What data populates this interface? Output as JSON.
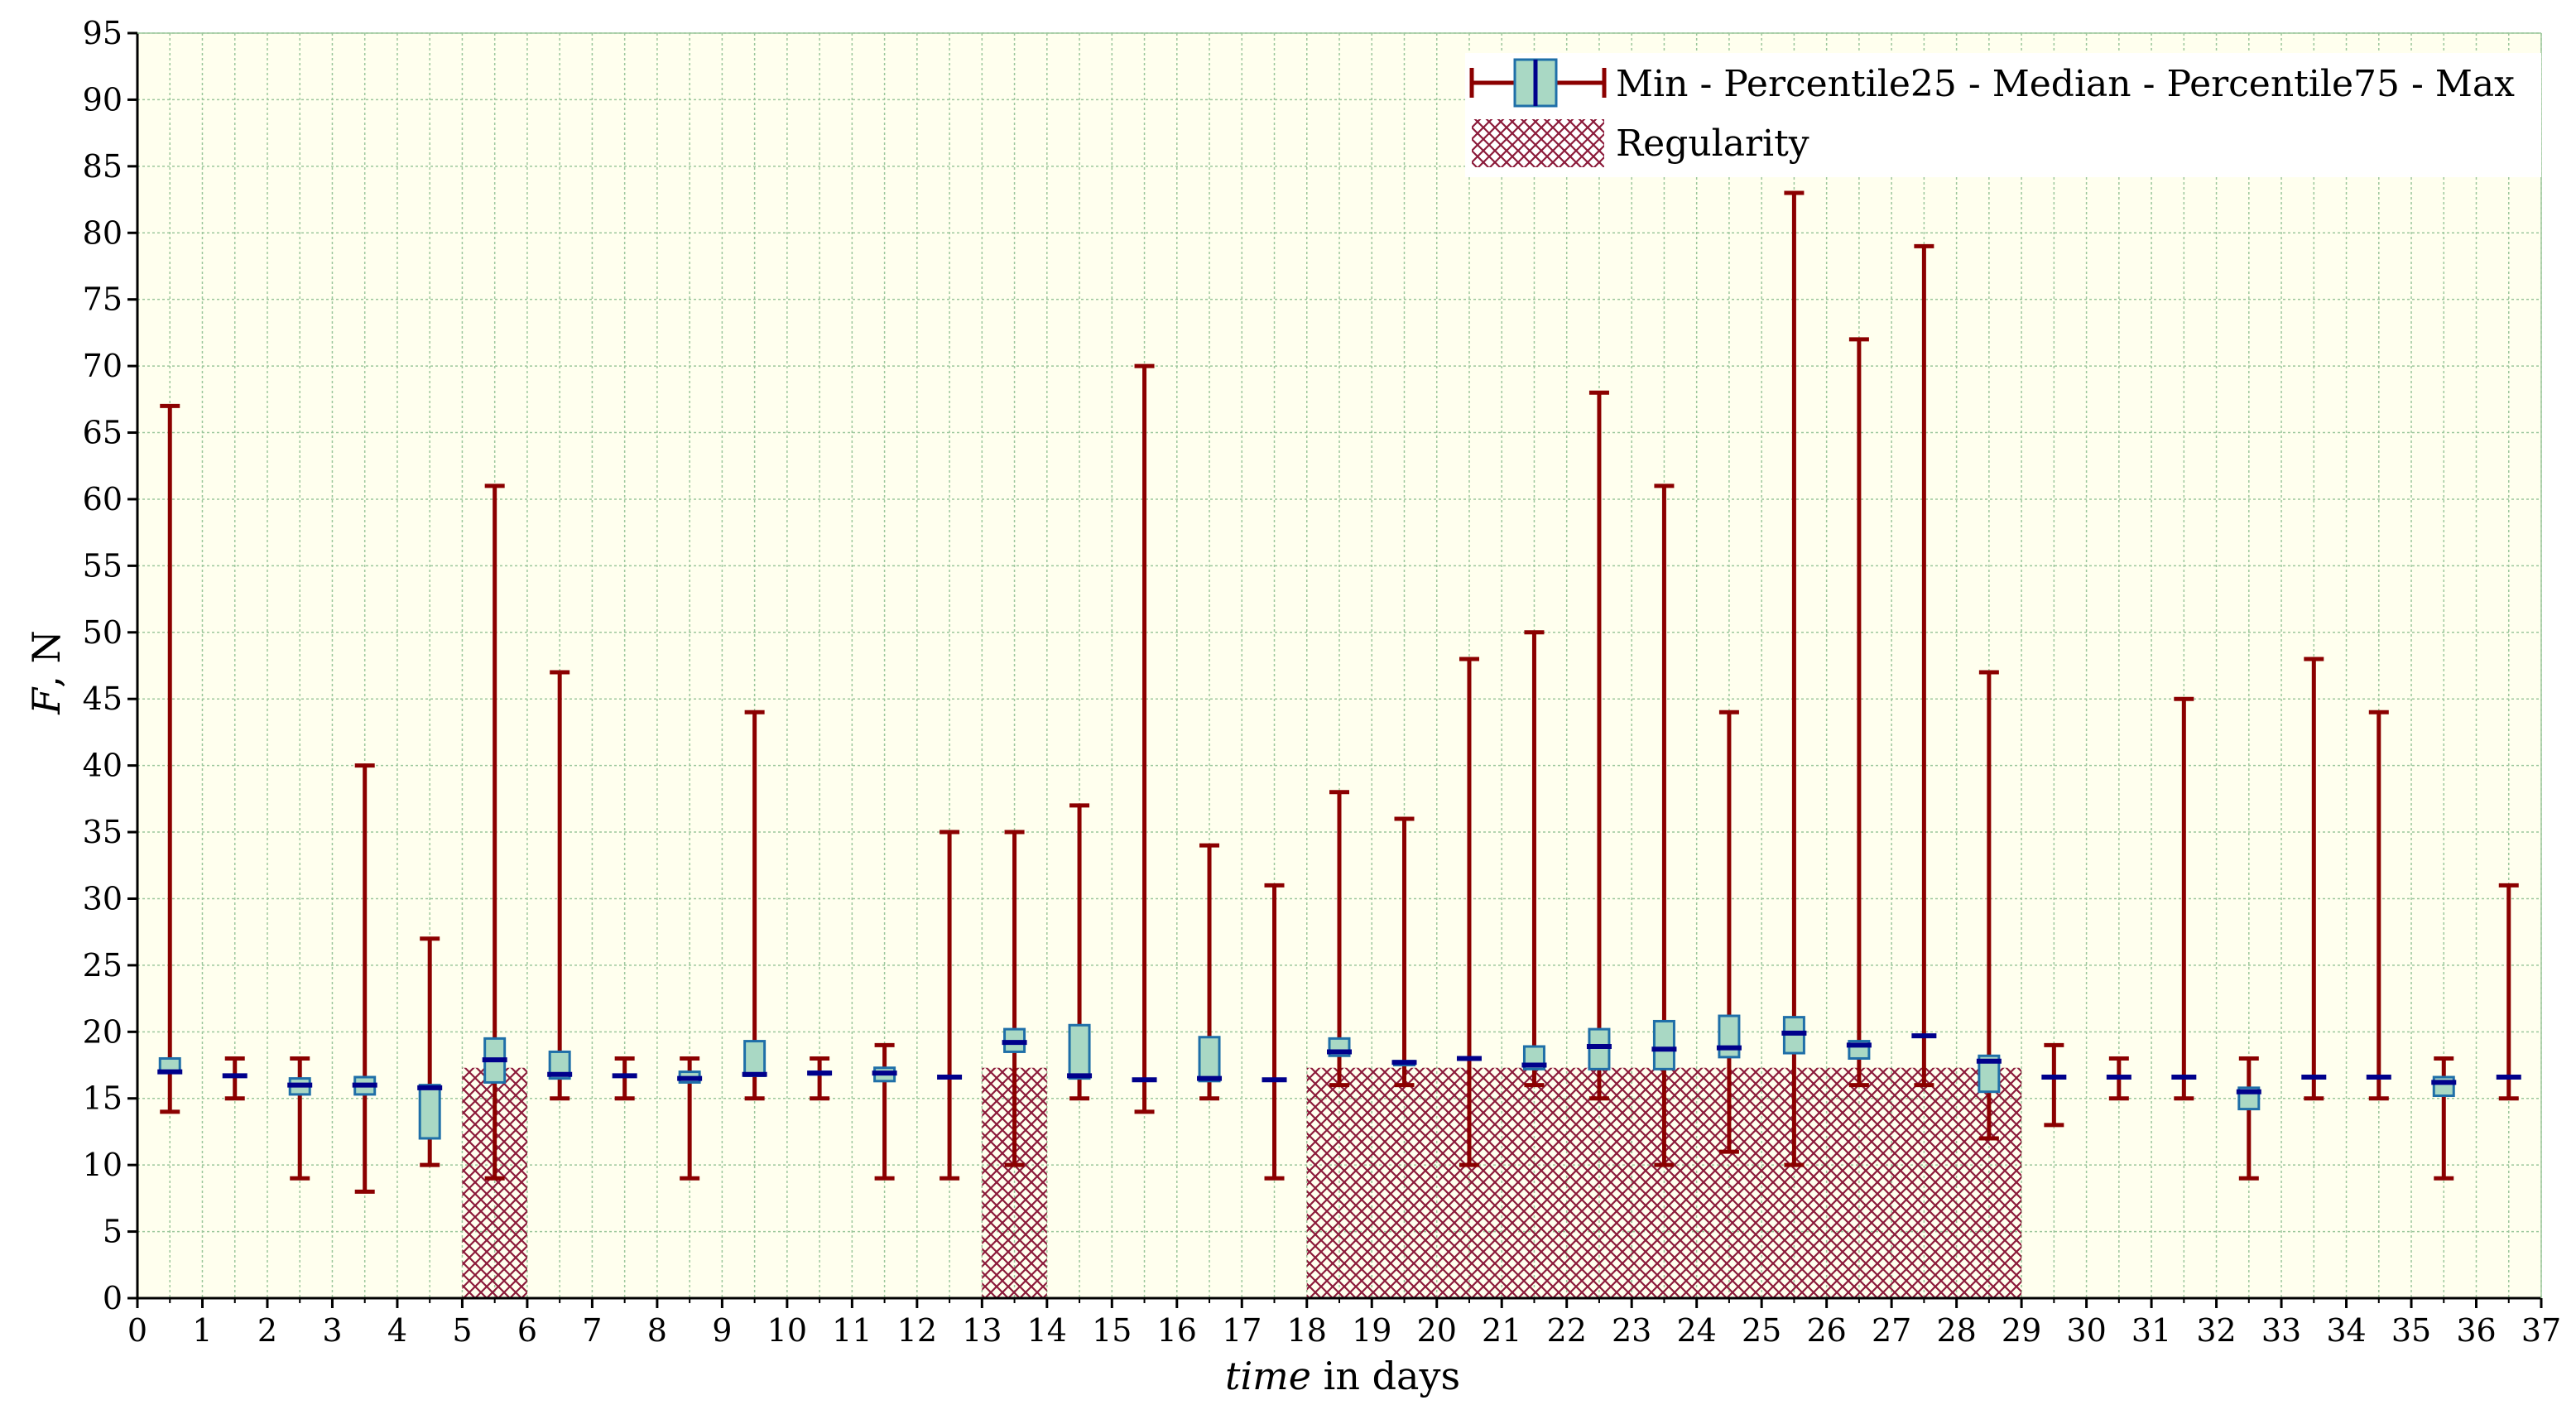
{
  "chart_data": {
    "type": "box",
    "xlabel_italic": "time",
    "xlabel_rest": " in days",
    "ylabel_italic": "F",
    "ylabel_rest": ", N",
    "xlim": [
      0,
      37
    ],
    "ylim": [
      0,
      95
    ],
    "x_ticks": [
      0,
      1,
      2,
      3,
      4,
      5,
      6,
      7,
      8,
      9,
      10,
      11,
      12,
      13,
      14,
      15,
      16,
      17,
      18,
      19,
      20,
      21,
      22,
      23,
      24,
      25,
      26,
      27,
      28,
      29,
      30,
      31,
      32,
      33,
      34,
      35,
      36,
      37
    ],
    "y_ticks": [
      0,
      5,
      10,
      15,
      20,
      25,
      30,
      35,
      40,
      45,
      50,
      55,
      60,
      65,
      70,
      75,
      80,
      85,
      90,
      95
    ],
    "grid": true,
    "legend_position": "top-right",
    "legend": {
      "box_label": "Min - Percentile25 - Median - Percentile75 - Max",
      "regularity_label": "Regularity"
    },
    "colors": {
      "background": "#FFFFEE",
      "grid": "#9CC79C",
      "whisker": "#8B0000",
      "box_fill": "#A9D8C4",
      "box_edge": "#1F6FA8",
      "median": "#00008B",
      "hatch": "#8B1A3A"
    },
    "regularity": [
      [
        5,
        6
      ],
      [
        13,
        14
      ],
      [
        18,
        29
      ]
    ],
    "regularity_level": 17.3,
    "boxes": [
      {
        "x": 0.5,
        "min": 14,
        "q1": 17,
        "median": 17,
        "q3": 18,
        "max": 67
      },
      {
        "x": 1.5,
        "min": 15,
        "q1": 16.7,
        "median": 16.7,
        "q3": 16.7,
        "max": 18
      },
      {
        "x": 2.5,
        "min": 9,
        "q1": 15.3,
        "median": 16,
        "q3": 16.5,
        "max": 18
      },
      {
        "x": 3.5,
        "min": 8,
        "q1": 15.3,
        "median": 16,
        "q3": 16.6,
        "max": 40
      },
      {
        "x": 4.5,
        "min": 10,
        "q1": 12,
        "median": 15.8,
        "q3": 16,
        "max": 27
      },
      {
        "x": 5.5,
        "min": 9,
        "q1": 16.2,
        "median": 17.9,
        "q3": 19.5,
        "max": 61
      },
      {
        "x": 6.5,
        "min": 15,
        "q1": 16.5,
        "median": 16.8,
        "q3": 18.5,
        "max": 47
      },
      {
        "x": 7.5,
        "min": 15,
        "q1": 16.7,
        "median": 16.7,
        "q3": 16.7,
        "max": 18
      },
      {
        "x": 8.5,
        "min": 9,
        "q1": 16.2,
        "median": 16.5,
        "q3": 17,
        "max": 18
      },
      {
        "x": 9.5,
        "min": 15,
        "q1": 16.7,
        "median": 16.8,
        "q3": 19.3,
        "max": 44
      },
      {
        "x": 10.5,
        "min": 15,
        "q1": 16.8,
        "median": 16.9,
        "q3": 17,
        "max": 18
      },
      {
        "x": 11.5,
        "min": 9,
        "q1": 16.3,
        "median": 16.9,
        "q3": 17.3,
        "max": 19
      },
      {
        "x": 12.5,
        "min": 9,
        "q1": 16.6,
        "median": 16.6,
        "q3": 16.6,
        "max": 35
      },
      {
        "x": 13.5,
        "min": 10,
        "q1": 18.5,
        "median": 19.2,
        "q3": 20.2,
        "max": 35
      },
      {
        "x": 14.5,
        "min": 15,
        "q1": 16.5,
        "median": 16.7,
        "q3": 20.5,
        "max": 37
      },
      {
        "x": 15.5,
        "min": 14,
        "q1": 16.4,
        "median": 16.4,
        "q3": 16.4,
        "max": 70
      },
      {
        "x": 16.5,
        "min": 15,
        "q1": 16.3,
        "median": 16.5,
        "q3": 19.6,
        "max": 34
      },
      {
        "x": 17.5,
        "min": 9,
        "q1": 16.4,
        "median": 16.4,
        "q3": 16.4,
        "max": 31
      },
      {
        "x": 18.5,
        "min": 16,
        "q1": 18.2,
        "median": 18.5,
        "q3": 19.5,
        "max": 38
      },
      {
        "x": 19.5,
        "min": 16,
        "q1": 17.5,
        "median": 17.7,
        "q3": 17.8,
        "max": 36
      },
      {
        "x": 20.5,
        "min": 10,
        "q1": 18,
        "median": 18,
        "q3": 18,
        "max": 48
      },
      {
        "x": 21.5,
        "min": 16,
        "q1": 17.2,
        "median": 17.5,
        "q3": 18.9,
        "max": 50
      },
      {
        "x": 22.5,
        "min": 15,
        "q1": 17.2,
        "median": 18.9,
        "q3": 20.2,
        "max": 68
      },
      {
        "x": 23.5,
        "min": 10,
        "q1": 17.2,
        "median": 18.7,
        "q3": 20.8,
        "max": 61
      },
      {
        "x": 24.5,
        "min": 11,
        "q1": 18.1,
        "median": 18.8,
        "q3": 21.2,
        "max": 44
      },
      {
        "x": 25.5,
        "min": 10,
        "q1": 18.4,
        "median": 19.9,
        "q3": 21.1,
        "max": 83
      },
      {
        "x": 26.5,
        "min": 16,
        "q1": 18,
        "median": 19,
        "q3": 19.3,
        "max": 72
      },
      {
        "x": 27.5,
        "min": 16,
        "q1": 19.7,
        "median": 19.7,
        "q3": 19.7,
        "max": 79
      },
      {
        "x": 28.5,
        "min": 12,
        "q1": 15.5,
        "median": 17.8,
        "q3": 18.2,
        "max": 47
      },
      {
        "x": 29.5,
        "min": 13,
        "q1": 16.6,
        "median": 16.6,
        "q3": 16.6,
        "max": 19
      },
      {
        "x": 30.5,
        "min": 15,
        "q1": 16.6,
        "median": 16.6,
        "q3": 16.6,
        "max": 18
      },
      {
        "x": 31.5,
        "min": 15,
        "q1": 16.6,
        "median": 16.6,
        "q3": 16.6,
        "max": 45
      },
      {
        "x": 32.5,
        "min": 9,
        "q1": 14.2,
        "median": 15.5,
        "q3": 15.8,
        "max": 18
      },
      {
        "x": 33.5,
        "min": 15,
        "q1": 16.6,
        "median": 16.6,
        "q3": 16.6,
        "max": 48
      },
      {
        "x": 34.5,
        "min": 15,
        "q1": 16.6,
        "median": 16.6,
        "q3": 16.6,
        "max": 44
      },
      {
        "x": 35.5,
        "min": 9,
        "q1": 15.2,
        "median": 16.2,
        "q3": 16.6,
        "max": 18
      },
      {
        "x": 36.5,
        "min": 15,
        "q1": 16.6,
        "median": 16.6,
        "q3": 16.6,
        "max": 31
      }
    ]
  }
}
